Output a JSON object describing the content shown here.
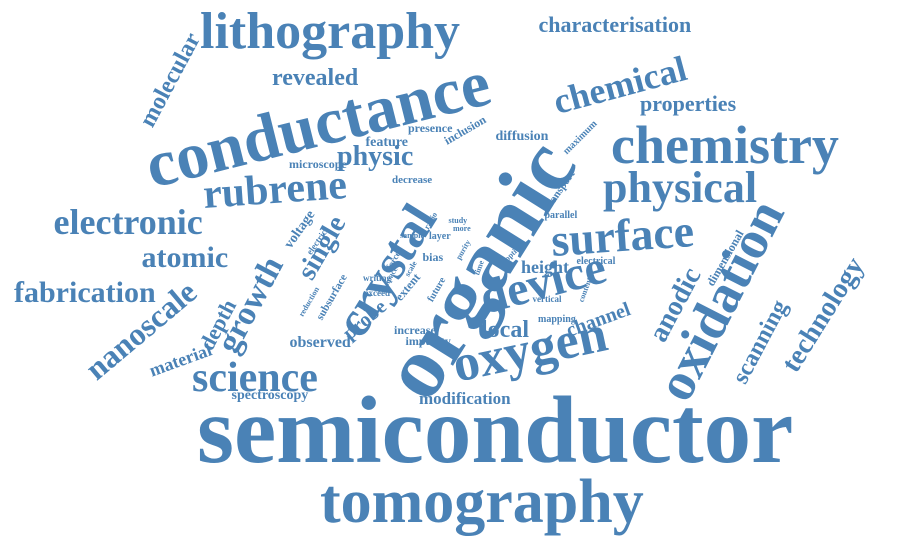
{
  "colors": {
    "word": "#4a82b6",
    "background": "#ffffff"
  },
  "words": [
    "semiconductor",
    "tomography",
    "conductance",
    "organic",
    "crystal",
    "lithography",
    "chemistry",
    "oxidation",
    "device",
    "oxygen",
    "physical",
    "surface",
    "rubrene",
    "electronic",
    "fabrication",
    "atomic",
    "nanoscale",
    "science",
    "growth",
    "technology",
    "chemical",
    "molecular",
    "characterisation",
    "revealed",
    "properties",
    "physic",
    "single",
    "depth",
    "anodic",
    "scanning",
    "local",
    "channel",
    "height",
    "modification",
    "spectroscopy",
    "material",
    "observed",
    "dimensional",
    "presence",
    "inclusion",
    "diffusion",
    "maximum",
    "feature",
    "microscope",
    "decrease",
    "voltage",
    "electric",
    "transport",
    "parallel",
    "layer",
    "bias",
    "study",
    "more",
    "radio",
    "optical",
    "electrical",
    "writing",
    "exceed",
    "extent",
    "subsurface",
    "reduction",
    "probe",
    "future",
    "force",
    "increase",
    "impurity",
    "mapping",
    "vertical",
    "content",
    "sample",
    "purity",
    "scale",
    "time",
    "space"
  ]
}
